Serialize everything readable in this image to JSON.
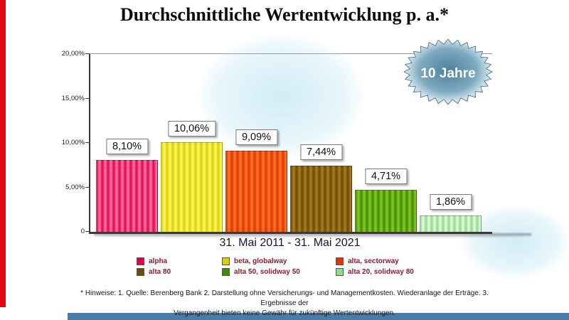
{
  "title": "Durchschnittliche Wertentwicklung p. a.*",
  "badge": {
    "label": "10 Jahre",
    "color_center": "#4e7f9e",
    "color_mid": "#7fabc0",
    "color_rim": "#cfe2ea",
    "color_edge": "#8fb6c8",
    "text_color": "#ffffff"
  },
  "accents": {
    "red_stripe": "#e30613",
    "blue_bar": "#4a7ca8"
  },
  "chart_data": {
    "type": "bar",
    "title": "Durchschnittliche Wertentwicklung p. a.*",
    "xlabel": "31. Mai 2011 - 31. Mai 2021",
    "ylabel": "",
    "ylim": [
      0,
      20
    ],
    "grid": false,
    "legend_position": "bottom",
    "categories": [
      "alpha",
      "beta, globalway",
      "alta, sectorway",
      "alta 80",
      "alta 50, solidway 50",
      "alta 20, solidway 80"
    ],
    "values": [
      8.1,
      10.06,
      9.09,
      7.44,
      4.71,
      1.86
    ],
    "series": [
      {
        "label": "alpha",
        "value": 8.1,
        "value_label": "8,10%",
        "color": "#e3004f",
        "stripe": "#ff7fa8"
      },
      {
        "label": "beta, globalway",
        "value": 10.06,
        "value_label": "10,06%",
        "color": "#ddd000",
        "stripe": "#fff86b"
      },
      {
        "label": "alta, sectorway",
        "value": 9.09,
        "value_label": "9,09%",
        "color": "#df3300",
        "stripe": "#ff7a30"
      },
      {
        "label": "alta 80",
        "value": 7.44,
        "value_label": "7,44%",
        "color": "#6e4a08",
        "stripe": "#a97f1e"
      },
      {
        "label": "alta 50, solidway 50",
        "value": 4.71,
        "value_label": "4,71%",
        "color": "#3f8c00",
        "stripe": "#8ccb30"
      },
      {
        "label": "alta 20, solidway 80",
        "value": 1.86,
        "value_label": "1,86%",
        "color": "#8edb8e",
        "stripe": "#e8fbe2"
      }
    ],
    "yticks": [
      {
        "value": 0,
        "label": "0"
      },
      {
        "value": 5,
        "label": "5,00%"
      },
      {
        "value": 10,
        "label": "10,00%"
      },
      {
        "value": 15,
        "label": "15,00%"
      },
      {
        "value": 20,
        "label": "20,00%"
      }
    ]
  },
  "footnote": {
    "line1": "* Hinweise: 1. Quelle: Berenberg Bank  2. Darstellung ohne Versicherungs- und Managementkosten. Wiederanlage der Erträge.  3. Ergebnisse der",
    "line2": "Vergangenheit bieten keine Gewähr für zukünftige Wertentwicklungen."
  }
}
